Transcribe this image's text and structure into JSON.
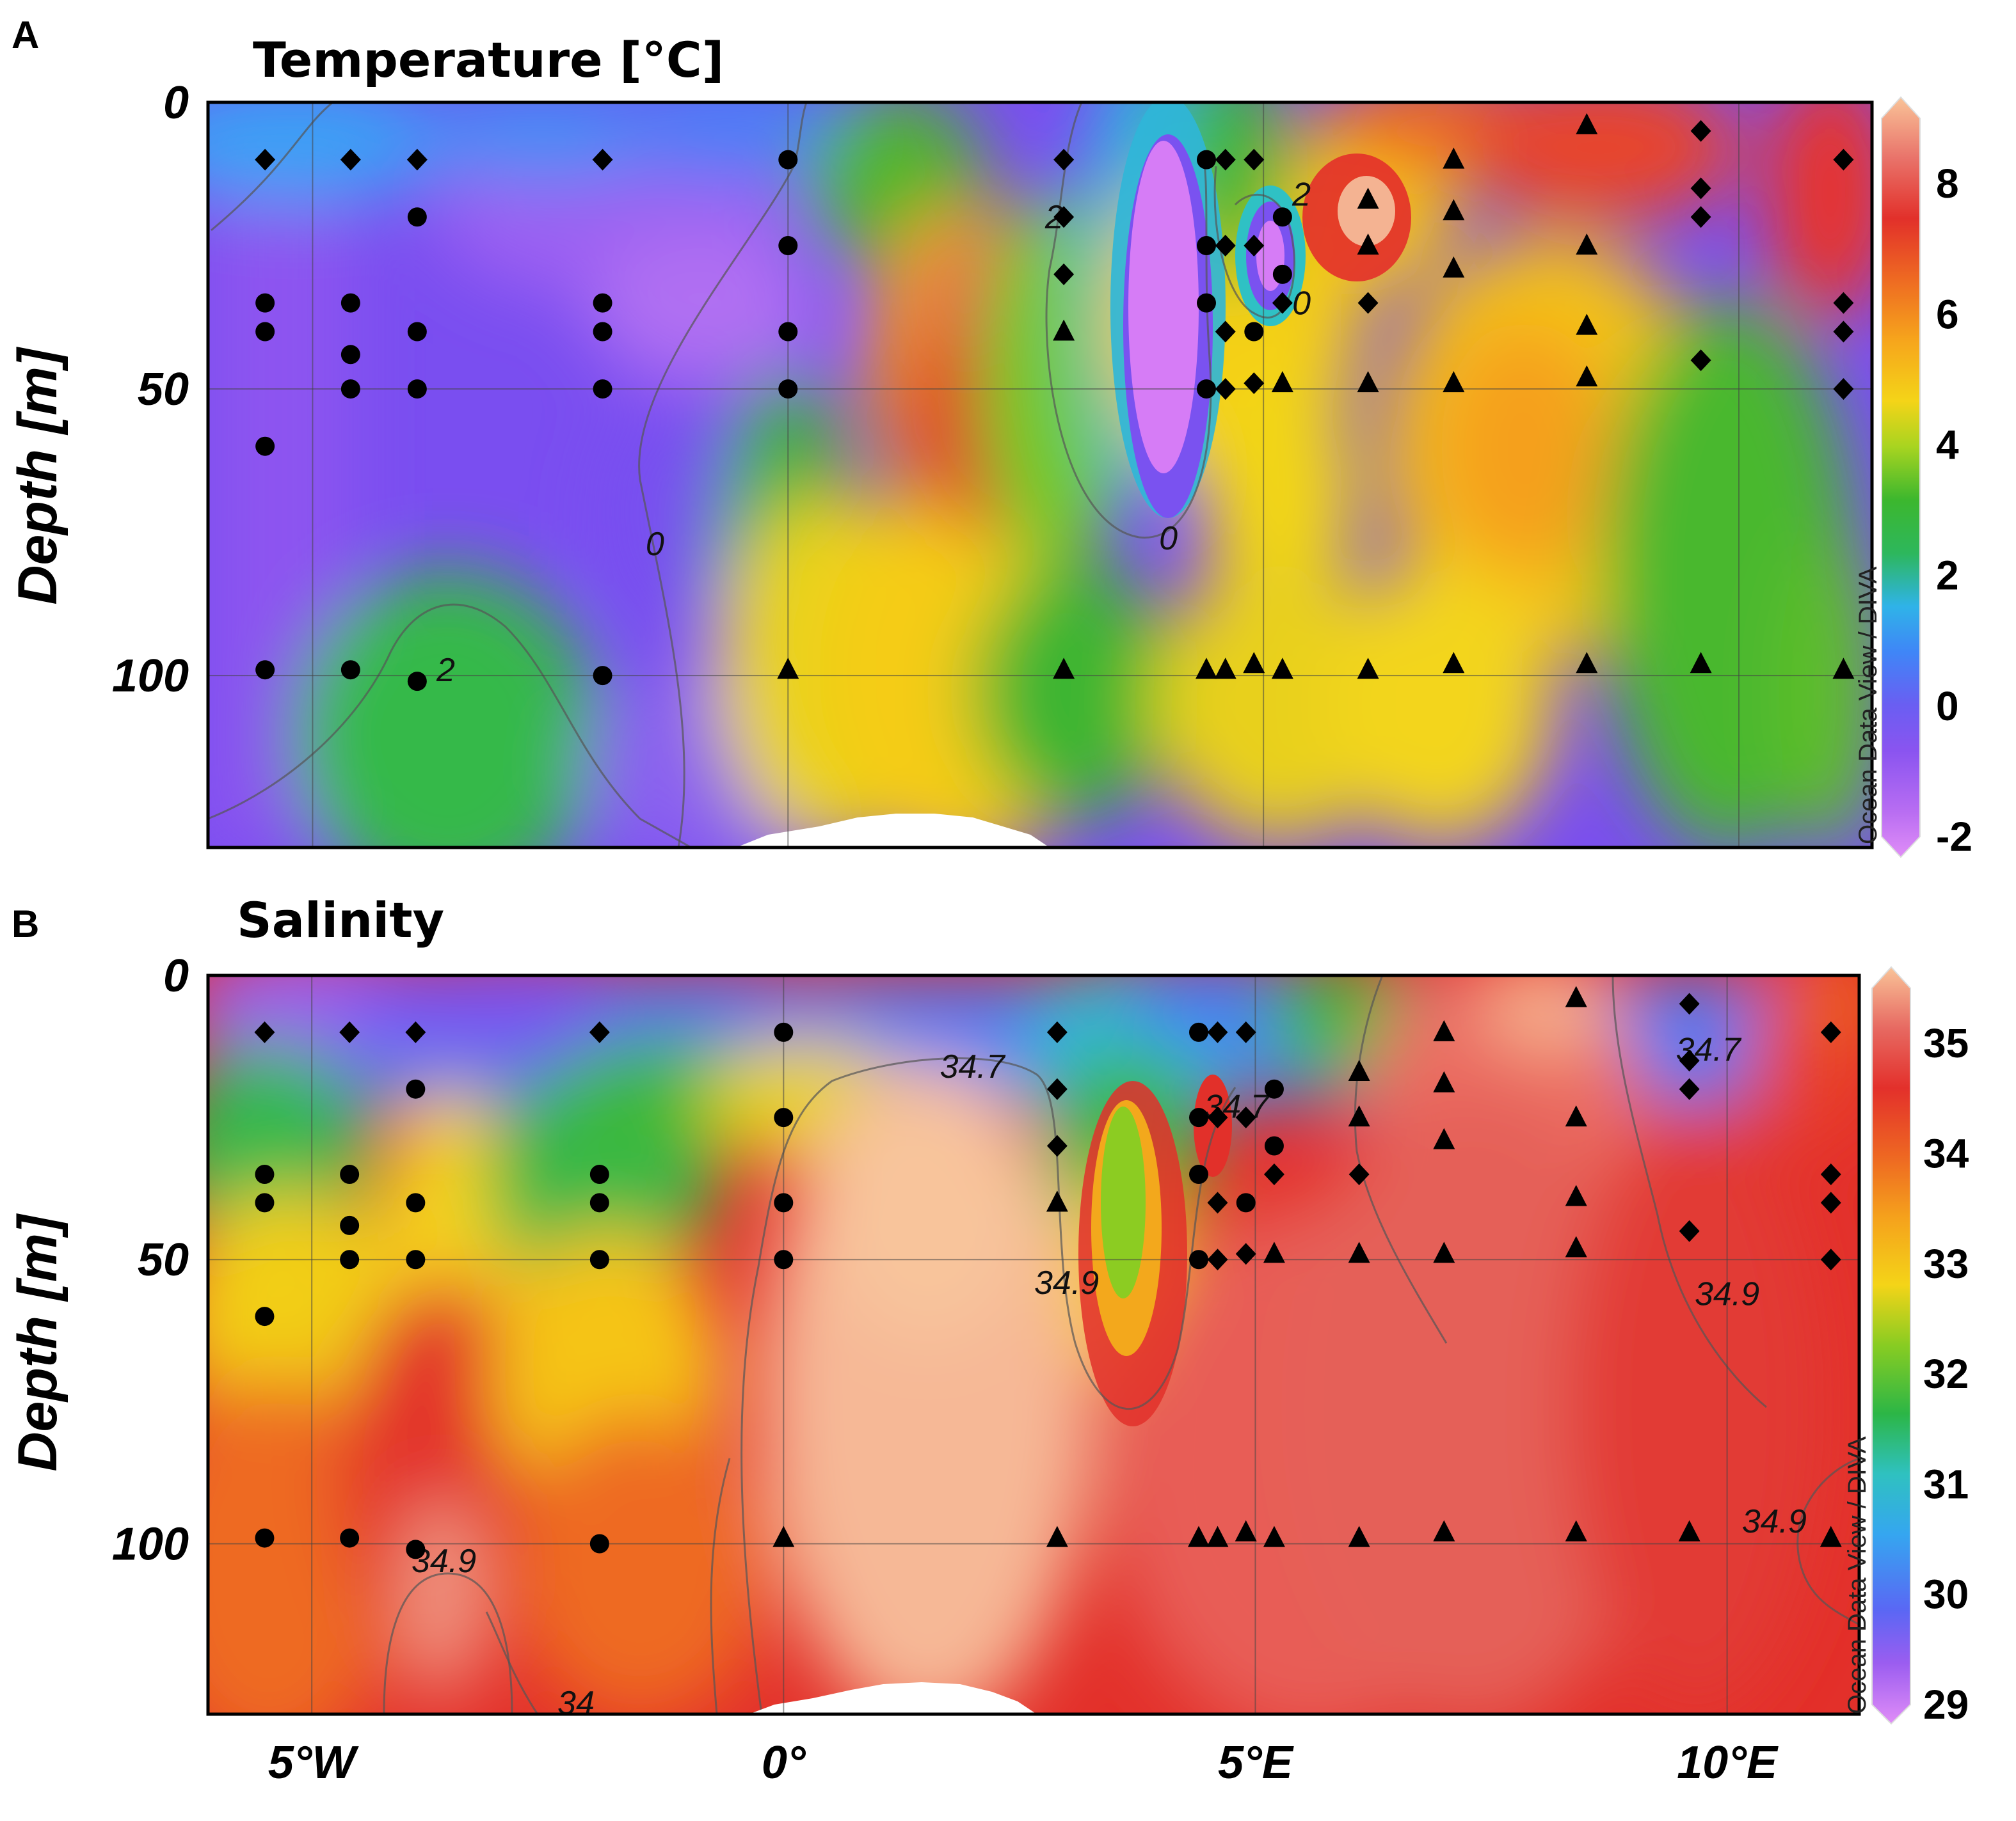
{
  "chart_data": [
    {
      "type": "heatmap",
      "panel_letter": "A",
      "title": "Temperature [°C]",
      "xlabel": "",
      "ylabel": "Depth [m]",
      "xlim": [
        -6.1,
        11.4
      ],
      "ylim": [
        130,
        0
      ],
      "x_ticks": [
        {
          "value": -5,
          "label": "5°W"
        },
        {
          "value": 0,
          "label": "0°"
        },
        {
          "value": 5,
          "label": "5°E"
        },
        {
          "value": 10,
          "label": "10°E"
        }
      ],
      "y_ticks": [
        {
          "value": 0,
          "label": "0"
        },
        {
          "value": 50,
          "label": "50"
        },
        {
          "value": 100,
          "label": "100"
        }
      ],
      "colorbar": {
        "min": -2,
        "max": 9,
        "ticks": [
          "8",
          "6",
          "4",
          "2",
          "0",
          "-2"
        ],
        "tick_values": [
          8,
          6,
          4,
          2,
          0,
          -2
        ]
      },
      "watermark": "Ocean Data View / DIVA",
      "contour_labels": [
        {
          "text": "0",
          "x": -1.4,
          "depth": 77
        },
        {
          "text": "0",
          "x": 4.0,
          "depth": 76
        },
        {
          "text": "0",
          "x": 5.4,
          "depth": 35
        },
        {
          "text": "2",
          "x": 2.8,
          "depth": 20
        },
        {
          "text": "2",
          "x": 5.4,
          "depth": 16
        },
        {
          "text": "2",
          "x": -3.6,
          "depth": 99
        }
      ],
      "grid": true,
      "stations": [
        {
          "x": -5.5,
          "marker": "diamond",
          "depths": [
            10
          ]
        },
        {
          "x": -5.5,
          "marker": "circle",
          "depths": [
            35,
            40,
            60,
            99
          ]
        },
        {
          "x": -4.6,
          "marker": "diamond",
          "depths": [
            10
          ]
        },
        {
          "x": -4.6,
          "marker": "circle",
          "depths": [
            35,
            44,
            50,
            99
          ]
        },
        {
          "x": -3.9,
          "marker": "diamond",
          "depths": [
            10
          ]
        },
        {
          "x": -3.9,
          "marker": "circle",
          "depths": [
            20,
            40,
            50,
            101
          ]
        },
        {
          "x": -1.95,
          "marker": "diamond",
          "depths": [
            10
          ]
        },
        {
          "x": -1.95,
          "marker": "circle",
          "depths": [
            35,
            40,
            50,
            100
          ]
        },
        {
          "x": 0.0,
          "marker": "circle",
          "depths": [
            10,
            25,
            40,
            50
          ]
        },
        {
          "x": 0.0,
          "marker": "triangle",
          "depths": [
            99
          ]
        },
        {
          "x": 2.9,
          "marker": "diamond",
          "depths": [
            10,
            20,
            30
          ]
        },
        {
          "x": 2.9,
          "marker": "triangle",
          "depths": [
            40,
            99
          ]
        },
        {
          "x": 4.4,
          "marker": "circle",
          "depths": [
            10,
            25,
            35,
            50
          ]
        },
        {
          "x": 4.4,
          "marker": "triangle",
          "depths": [
            99
          ]
        },
        {
          "x": 4.6,
          "marker": "diamond",
          "depths": [
            10,
            25,
            40,
            50
          ]
        },
        {
          "x": 4.6,
          "marker": "triangle",
          "depths": [
            99
          ]
        },
        {
          "x": 4.9,
          "marker": "diamond",
          "depths": [
            10,
            25,
            49
          ]
        },
        {
          "x": 4.9,
          "marker": "circle",
          "depths": [
            40
          ]
        },
        {
          "x": 4.9,
          "marker": "triangle",
          "depths": [
            98
          ]
        },
        {
          "x": 5.2,
          "marker": "circle",
          "depths": [
            20,
            30
          ]
        },
        {
          "x": 5.2,
          "marker": "diamond",
          "depths": [
            35
          ]
        },
        {
          "x": 5.2,
          "marker": "triangle",
          "depths": [
            49,
            99
          ]
        },
        {
          "x": 6.1,
          "marker": "triangle",
          "depths": [
            17,
            25,
            49,
            99
          ]
        },
        {
          "x": 6.1,
          "marker": "diamond",
          "depths": [
            35
          ]
        },
        {
          "x": 7.0,
          "marker": "triangle",
          "depths": [
            10,
            19,
            29,
            49,
            98
          ]
        },
        {
          "x": 8.4,
          "marker": "triangle",
          "depths": [
            4,
            25,
            39,
            48,
            98
          ]
        },
        {
          "x": 9.6,
          "marker": "diamond",
          "depths": [
            5,
            15,
            20,
            45
          ]
        },
        {
          "x": 9.6,
          "marker": "triangle",
          "depths": [
            98
          ]
        },
        {
          "x": 11.1,
          "marker": "diamond",
          "depths": [
            10,
            35,
            40,
            50
          ]
        },
        {
          "x": 11.1,
          "marker": "triangle",
          "depths": [
            99
          ]
        }
      ]
    },
    {
      "type": "heatmap",
      "panel_letter": "B",
      "title": "Salinity",
      "xlabel": "",
      "ylabel": "Depth [m]",
      "xlim": [
        -6.1,
        11.4
      ],
      "ylim": [
        130,
        0
      ],
      "x_ticks": [
        {
          "value": -5,
          "label": "5°W"
        },
        {
          "value": 0,
          "label": "0°"
        },
        {
          "value": 5,
          "label": "5°E"
        },
        {
          "value": 10,
          "label": "10°E"
        }
      ],
      "y_ticks": [
        {
          "value": 0,
          "label": "0"
        },
        {
          "value": 50,
          "label": "50"
        },
        {
          "value": 100,
          "label": "100"
        }
      ],
      "colorbar": {
        "min": 29,
        "max": 35.5,
        "ticks": [
          "35",
          "34",
          "33",
          "32",
          "31",
          "30",
          "29"
        ],
        "tick_values": [
          35,
          34,
          33,
          32,
          31,
          30,
          29
        ]
      },
      "watermark": "Ocean Data View / DIVA",
      "contour_labels": [
        {
          "text": "34.7",
          "x": 2.0,
          "depth": 16
        },
        {
          "text": "34.7",
          "x": 4.8,
          "depth": 23
        },
        {
          "text": "34.7",
          "x": 9.8,
          "depth": 13
        },
        {
          "text": "34.9",
          "x": 3.0,
          "depth": 54
        },
        {
          "text": "34.9",
          "x": 10.0,
          "depth": 56
        },
        {
          "text": "34.9",
          "x": 10.5,
          "depth": 96
        },
        {
          "text": "34.9",
          "x": -3.6,
          "depth": 103
        },
        {
          "text": "34",
          "x": -2.2,
          "depth": 128
        }
      ],
      "grid": true,
      "stations": [
        {
          "x": -5.5,
          "marker": "diamond",
          "depths": [
            10
          ]
        },
        {
          "x": -5.5,
          "marker": "circle",
          "depths": [
            35,
            40,
            60,
            99
          ]
        },
        {
          "x": -4.6,
          "marker": "diamond",
          "depths": [
            10
          ]
        },
        {
          "x": -4.6,
          "marker": "circle",
          "depths": [
            35,
            44,
            50,
            99
          ]
        },
        {
          "x": -3.9,
          "marker": "diamond",
          "depths": [
            10
          ]
        },
        {
          "x": -3.9,
          "marker": "circle",
          "depths": [
            20,
            40,
            50,
            101
          ]
        },
        {
          "x": -1.95,
          "marker": "diamond",
          "depths": [
            10
          ]
        },
        {
          "x": -1.95,
          "marker": "circle",
          "depths": [
            35,
            40,
            50,
            100
          ]
        },
        {
          "x": 0.0,
          "marker": "circle",
          "depths": [
            10,
            25,
            40,
            50
          ]
        },
        {
          "x": 0.0,
          "marker": "triangle",
          "depths": [
            99
          ]
        },
        {
          "x": 2.9,
          "marker": "diamond",
          "depths": [
            10,
            20,
            30
          ]
        },
        {
          "x": 2.9,
          "marker": "triangle",
          "depths": [
            40,
            99
          ]
        },
        {
          "x": 4.4,
          "marker": "circle",
          "depths": [
            10,
            25,
            35,
            50
          ]
        },
        {
          "x": 4.4,
          "marker": "triangle",
          "depths": [
            99
          ]
        },
        {
          "x": 4.6,
          "marker": "diamond",
          "depths": [
            10,
            25,
            40,
            50
          ]
        },
        {
          "x": 4.6,
          "marker": "triangle",
          "depths": [
            99
          ]
        },
        {
          "x": 4.9,
          "marker": "diamond",
          "depths": [
            10,
            25,
            49
          ]
        },
        {
          "x": 4.9,
          "marker": "circle",
          "depths": [
            40
          ]
        },
        {
          "x": 4.9,
          "marker": "triangle",
          "depths": [
            98
          ]
        },
        {
          "x": 5.2,
          "marker": "circle",
          "depths": [
            20,
            30
          ]
        },
        {
          "x": 5.2,
          "marker": "diamond",
          "depths": [
            35
          ]
        },
        {
          "x": 5.2,
          "marker": "triangle",
          "depths": [
            49,
            99
          ]
        },
        {
          "x": 6.1,
          "marker": "triangle",
          "depths": [
            17,
            25,
            49,
            99
          ]
        },
        {
          "x": 6.1,
          "marker": "diamond",
          "depths": [
            35
          ]
        },
        {
          "x": 7.0,
          "marker": "triangle",
          "depths": [
            10,
            19,
            29,
            49,
            98
          ]
        },
        {
          "x": 8.4,
          "marker": "triangle",
          "depths": [
            4,
            25,
            39,
            48,
            98
          ]
        },
        {
          "x": 9.6,
          "marker": "diamond",
          "depths": [
            5,
            15,
            20,
            45
          ]
        },
        {
          "x": 9.6,
          "marker": "triangle",
          "depths": [
            98
          ]
        },
        {
          "x": 11.1,
          "marker": "diamond",
          "depths": [
            10,
            35,
            40,
            50
          ]
        },
        {
          "x": 11.1,
          "marker": "triangle",
          "depths": [
            99
          ]
        }
      ]
    }
  ],
  "colors": {
    "scale": [
      "#d680f2",
      "#9a5cf0",
      "#7a4ef0",
      "#4d74f5",
      "#2fa0f5",
      "#29c2d6",
      "#2bb84a",
      "#6cc92a",
      "#c8d91f",
      "#f5d21a",
      "#f7a41c",
      "#ef6a20",
      "#e3362a",
      "#e3564f",
      "#f08e7a",
      "#f8b38e"
    ],
    "seafloor": "#ffffff",
    "marker": "#000000"
  }
}
